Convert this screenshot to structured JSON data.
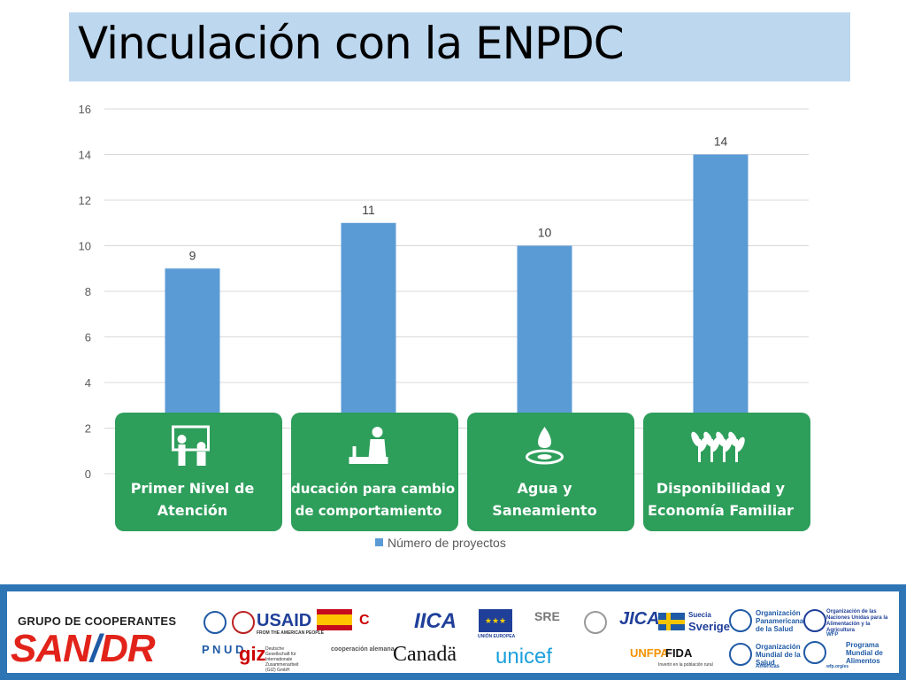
{
  "slide": {
    "title": "Vinculación con la ENPDC"
  },
  "chart_data": {
    "type": "bar",
    "categories": [
      "Primer Nivel de Atención",
      "Educación para cambio de comportamiento",
      "Agua y Saneamiento",
      "Disponibilidad y Economía Familiar"
    ],
    "category_lines": [
      [
        "Primer  Nivel de",
        "Atención"
      ],
      [
        "Educación para cambio",
        "de comportamiento"
      ],
      [
        "Agua y",
        "Saneamiento"
      ],
      [
        "Disponibilidad y",
        "Economía Familiar"
      ]
    ],
    "series": [
      {
        "name": "Número de proyectos",
        "values": [
          9,
          11,
          10,
          14
        ]
      }
    ],
    "yticks": [
      0,
      2,
      4,
      6,
      8,
      10,
      12,
      14,
      16
    ],
    "ylim": [
      0,
      16
    ],
    "grid": true,
    "legend": "bottom",
    "bar_color": "#5b9bd5",
    "panel_color": "#2e9e5b",
    "panel_icons": [
      "classroom-icon",
      "teacher-icon",
      "water-drop-icon",
      "plant-icon"
    ]
  },
  "footer": {
    "group_name": "GRUPO DE COOPERANTES",
    "group_logo_a": "SAN",
    "group_logo_sep": "/",
    "group_logo_b": "DR",
    "logos": {
      "pnud": "P N U D",
      "usaid": "USAID",
      "usaid_sub": "FROM THE AMERICAN PEOPLE",
      "giz": "giz",
      "giz_sub": "Deutsche Gesellschaft für Internationale Zusammenarbeit (GIZ) GmbH",
      "coop_alemana": "cooperación alemana",
      "iica": "IICA",
      "union_europea": "UNIÓN EUROPEA",
      "sre": "SRE",
      "canada": "Canadä",
      "unicef": "unicef",
      "jica": "JICA",
      "unfpa": "UNFPA",
      "fida": "FIDA",
      "fida_sub": "Invertir en la población rural",
      "suecia": "Suecia",
      "sverige": "Sverige",
      "ops": "Organización Panamericana de la Salud",
      "oms": "Organización Mundial de la Salud",
      "oms_sub": "Américas",
      "fao": "Organización de las Naciones Unidas para la Alimentación y la Agricultura",
      "wfp": "WFP",
      "pma": "Programa Mundial de Alimentos",
      "pma_url": "wfp.org/es"
    }
  }
}
